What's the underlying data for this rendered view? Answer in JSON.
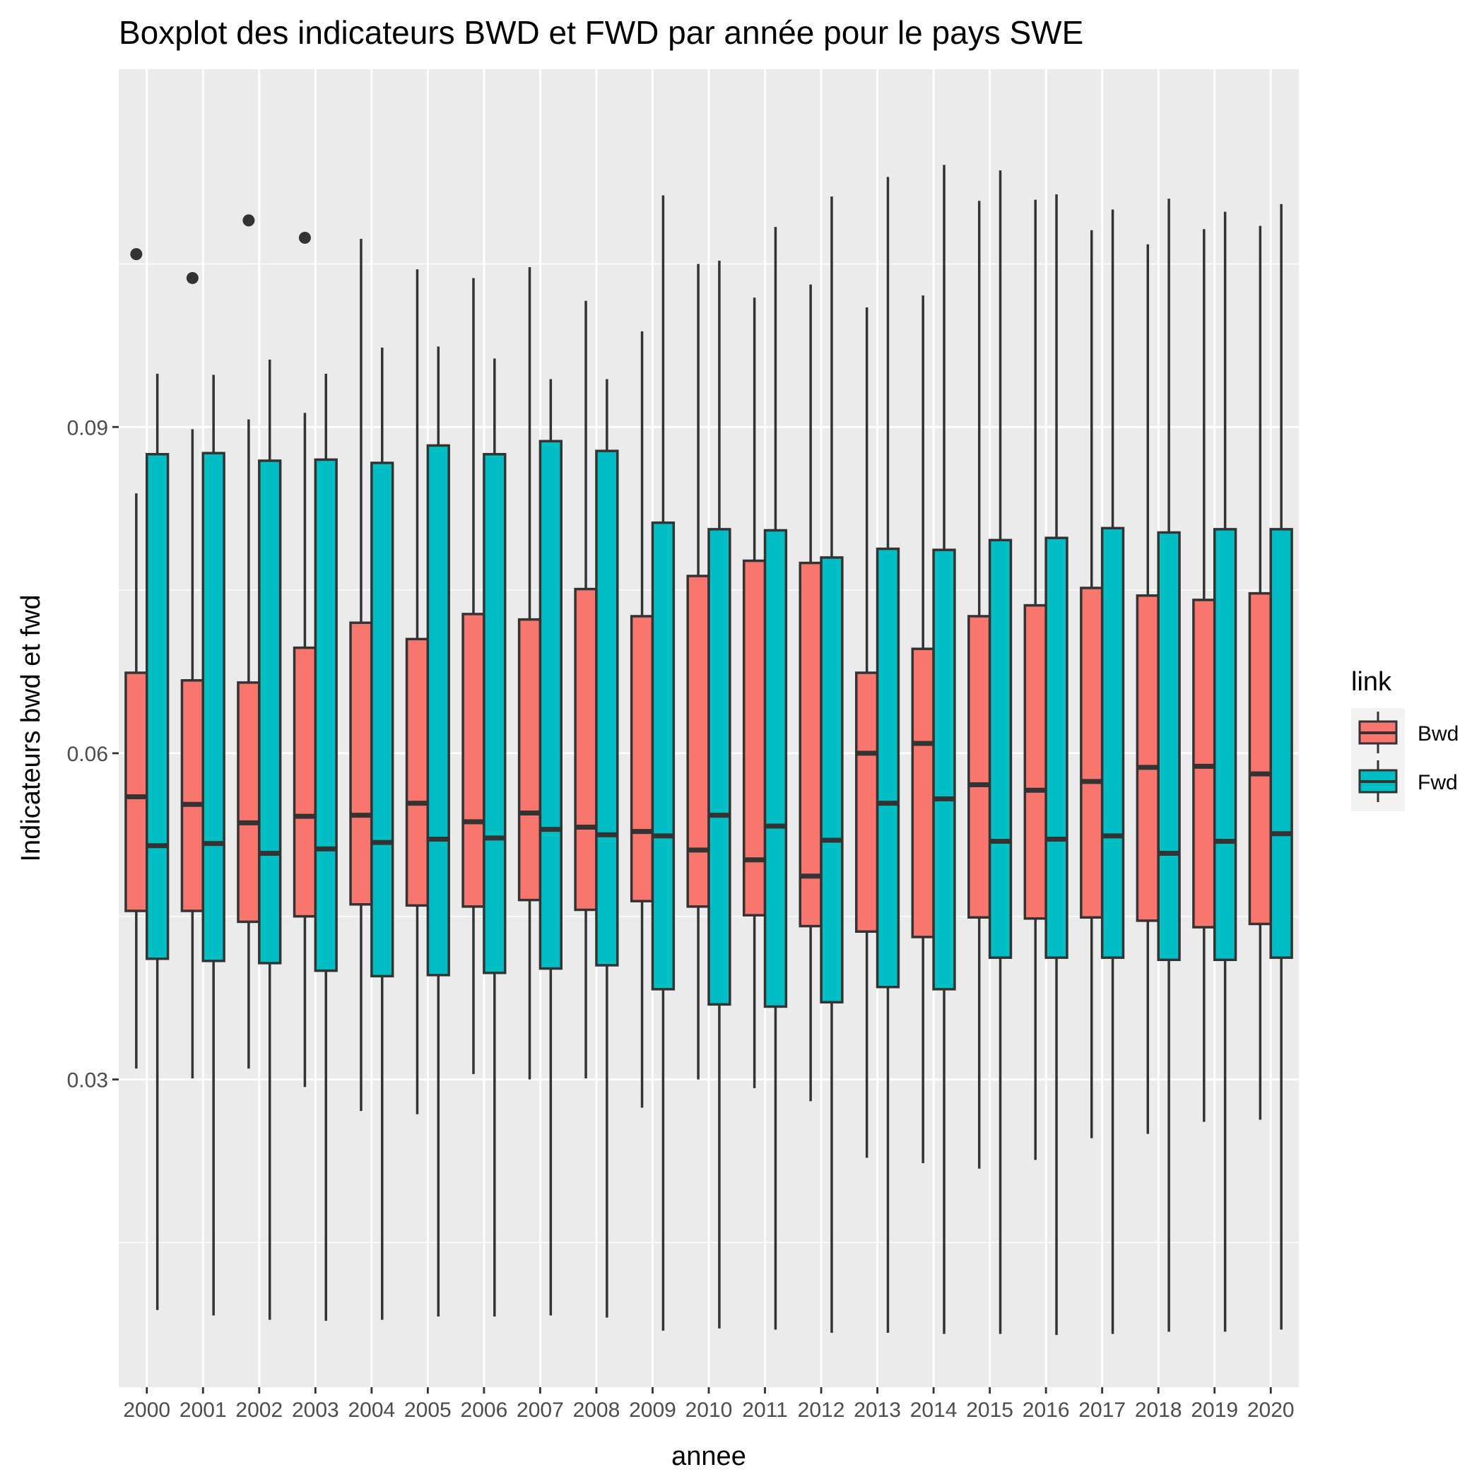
{
  "chart_data": {
    "type": "boxplot",
    "title": "Boxplot des indicateurs BWD et FWD par année pour le pays SWE",
    "xlabel": "annee",
    "ylabel": "Indicateurs bwd et fwd",
    "ylim": [
      0.0017,
      0.1229
    ],
    "y_ticks": [
      0.03,
      0.06,
      0.09
    ],
    "y_tick_labels": [
      "0.03",
      "0.06",
      "0.09"
    ],
    "grid": true,
    "legend_position": "right",
    "legend_title": "link",
    "categories": [
      "2000",
      "2001",
      "2002",
      "2003",
      "2004",
      "2005",
      "2006",
      "2007",
      "2008",
      "2009",
      "2010",
      "2011",
      "2012",
      "2013",
      "2014",
      "2015",
      "2016",
      "2017",
      "2018",
      "2019",
      "2020"
    ],
    "series": [
      {
        "name": "Bwd",
        "color": "#F8766D",
        "boxes": [
          {
            "whislo": 0.031,
            "q1": 0.0455,
            "med": 0.056,
            "q3": 0.0674,
            "whishi": 0.0839,
            "fliers": [
              0.1059
            ]
          },
          {
            "whislo": 0.0301,
            "q1": 0.0455,
            "med": 0.0553,
            "q3": 0.0667,
            "whishi": 0.0898,
            "fliers": [
              0.1037
            ]
          },
          {
            "whislo": 0.031,
            "q1": 0.0445,
            "med": 0.0536,
            "q3": 0.0665,
            "whishi": 0.0907,
            "fliers": [
              0.109
            ]
          },
          {
            "whislo": 0.0293,
            "q1": 0.045,
            "med": 0.0542,
            "q3": 0.0697,
            "whishi": 0.0913,
            "fliers": [
              0.1074
            ]
          },
          {
            "whislo": 0.0271,
            "q1": 0.0461,
            "med": 0.0543,
            "q3": 0.072,
            "whishi": 0.1073,
            "fliers": []
          },
          {
            "whislo": 0.0268,
            "q1": 0.046,
            "med": 0.0554,
            "q3": 0.0705,
            "whishi": 0.1045,
            "fliers": []
          },
          {
            "whislo": 0.0305,
            "q1": 0.0459,
            "med": 0.0537,
            "q3": 0.0728,
            "whishi": 0.1037,
            "fliers": []
          },
          {
            "whislo": 0.03,
            "q1": 0.0465,
            "med": 0.0545,
            "q3": 0.0723,
            "whishi": 0.1047,
            "fliers": []
          },
          {
            "whislo": 0.0301,
            "q1": 0.0456,
            "med": 0.0532,
            "q3": 0.0751,
            "whishi": 0.1016,
            "fliers": []
          },
          {
            "whislo": 0.0274,
            "q1": 0.0464,
            "med": 0.0528,
            "q3": 0.0726,
            "whishi": 0.0988,
            "fliers": []
          },
          {
            "whislo": 0.03,
            "q1": 0.0459,
            "med": 0.0511,
            "q3": 0.0763,
            "whishi": 0.105,
            "fliers": []
          },
          {
            "whislo": 0.0292,
            "q1": 0.0451,
            "med": 0.0502,
            "q3": 0.0777,
            "whishi": 0.1019,
            "fliers": []
          },
          {
            "whislo": 0.028,
            "q1": 0.0441,
            "med": 0.0487,
            "q3": 0.0775,
            "whishi": 0.1031,
            "fliers": []
          },
          {
            "whislo": 0.0228,
            "q1": 0.0436,
            "med": 0.06,
            "q3": 0.0674,
            "whishi": 0.101,
            "fliers": []
          },
          {
            "whislo": 0.0223,
            "q1": 0.0431,
            "med": 0.0609,
            "q3": 0.0696,
            "whishi": 0.1021,
            "fliers": []
          },
          {
            "whislo": 0.0218,
            "q1": 0.0449,
            "med": 0.0571,
            "q3": 0.0726,
            "whishi": 0.1108,
            "fliers": []
          },
          {
            "whislo": 0.0226,
            "q1": 0.0448,
            "med": 0.0566,
            "q3": 0.0736,
            "whishi": 0.1109,
            "fliers": []
          },
          {
            "whislo": 0.0246,
            "q1": 0.0449,
            "med": 0.0574,
            "q3": 0.0752,
            "whishi": 0.1081,
            "fliers": []
          },
          {
            "whislo": 0.025,
            "q1": 0.0446,
            "med": 0.0587,
            "q3": 0.0745,
            "whishi": 0.1068,
            "fliers": []
          },
          {
            "whislo": 0.0261,
            "q1": 0.044,
            "med": 0.0588,
            "q3": 0.0741,
            "whishi": 0.1082,
            "fliers": []
          },
          {
            "whislo": 0.0263,
            "q1": 0.0443,
            "med": 0.0581,
            "q3": 0.0747,
            "whishi": 0.1085,
            "fliers": []
          }
        ]
      },
      {
        "name": "Fwd",
        "color": "#00BFC4",
        "boxes": [
          {
            "whislo": 0.0088,
            "q1": 0.0411,
            "med": 0.0515,
            "q3": 0.0875,
            "whishi": 0.0949,
            "fliers": []
          },
          {
            "whislo": 0.0083,
            "q1": 0.0409,
            "med": 0.0517,
            "q3": 0.0876,
            "whishi": 0.0948,
            "fliers": []
          },
          {
            "whislo": 0.0079,
            "q1": 0.0407,
            "med": 0.0508,
            "q3": 0.0869,
            "whishi": 0.0962,
            "fliers": []
          },
          {
            "whislo": 0.0078,
            "q1": 0.04,
            "med": 0.0512,
            "q3": 0.087,
            "whishi": 0.0949,
            "fliers": []
          },
          {
            "whislo": 0.0079,
            "q1": 0.0395,
            "med": 0.0518,
            "q3": 0.0867,
            "whishi": 0.0973,
            "fliers": []
          },
          {
            "whislo": 0.0082,
            "q1": 0.0396,
            "med": 0.0521,
            "q3": 0.0883,
            "whishi": 0.0974,
            "fliers": []
          },
          {
            "whislo": 0.0082,
            "q1": 0.0398,
            "med": 0.0522,
            "q3": 0.0875,
            "whishi": 0.0963,
            "fliers": []
          },
          {
            "whislo": 0.0083,
            "q1": 0.0402,
            "med": 0.053,
            "q3": 0.0887,
            "whishi": 0.0944,
            "fliers": []
          },
          {
            "whislo": 0.0081,
            "q1": 0.0405,
            "med": 0.0525,
            "q3": 0.0878,
            "whishi": 0.0944,
            "fliers": []
          },
          {
            "whislo": 0.0069,
            "q1": 0.0383,
            "med": 0.0524,
            "q3": 0.0812,
            "whishi": 0.1113,
            "fliers": []
          },
          {
            "whislo": 0.0071,
            "q1": 0.0369,
            "med": 0.0543,
            "q3": 0.0806,
            "whishi": 0.1053,
            "fliers": []
          },
          {
            "whislo": 0.007,
            "q1": 0.0367,
            "med": 0.0533,
            "q3": 0.0805,
            "whishi": 0.1084,
            "fliers": []
          },
          {
            "whislo": 0.0067,
            "q1": 0.0371,
            "med": 0.052,
            "q3": 0.078,
            "whishi": 0.1112,
            "fliers": []
          },
          {
            "whislo": 0.0067,
            "q1": 0.0385,
            "med": 0.0554,
            "q3": 0.0788,
            "whishi": 0.113,
            "fliers": []
          },
          {
            "whislo": 0.0066,
            "q1": 0.0383,
            "med": 0.0558,
            "q3": 0.0787,
            "whishi": 0.1141,
            "fliers": []
          },
          {
            "whislo": 0.0066,
            "q1": 0.0412,
            "med": 0.0519,
            "q3": 0.0796,
            "whishi": 0.1136,
            "fliers": []
          },
          {
            "whislo": 0.0065,
            "q1": 0.0412,
            "med": 0.0521,
            "q3": 0.0798,
            "whishi": 0.1114,
            "fliers": []
          },
          {
            "whislo": 0.0066,
            "q1": 0.0412,
            "med": 0.0524,
            "q3": 0.0807,
            "whishi": 0.11,
            "fliers": []
          },
          {
            "whislo": 0.0068,
            "q1": 0.041,
            "med": 0.0508,
            "q3": 0.0803,
            "whishi": 0.111,
            "fliers": []
          },
          {
            "whislo": 0.0068,
            "q1": 0.041,
            "med": 0.0519,
            "q3": 0.0806,
            "whishi": 0.1098,
            "fliers": []
          },
          {
            "whislo": 0.007,
            "q1": 0.0412,
            "med": 0.0526,
            "q3": 0.0806,
            "whishi": 0.1105,
            "fliers": []
          }
        ]
      }
    ]
  }
}
